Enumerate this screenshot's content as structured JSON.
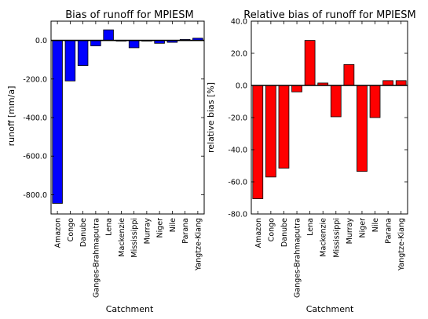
{
  "chart_data": [
    {
      "type": "bar",
      "title": "Bias of runoff for MPIESM",
      "xlabel": "Catchment",
      "ylabel": "runoff [mm/a]",
      "categories": [
        "Amazon",
        "Congo",
        "Danube",
        "Ganges-Brahmaputra",
        "Lena",
        "Mackenzie",
        "Mississippi",
        "Murray",
        "Niger",
        "Nile",
        "Parana",
        "Yangtze-Kiang"
      ],
      "values": [
        -845,
        -210,
        -130,
        -28,
        55,
        -2,
        -38,
        -3,
        -15,
        -10,
        5,
        12
      ],
      "ylim": [
        -900,
        100
      ],
      "yticks": [
        -800,
        -600,
        -400,
        -200,
        0
      ],
      "ytick_labels": [
        "-800.0",
        "-600.0",
        "-400.0",
        "-200.0",
        "0.0"
      ],
      "color": "#0000ff",
      "grid": false,
      "zero_line": true
    },
    {
      "type": "bar",
      "title": "Relative bias of runoff for MPIESM",
      "xlabel": "Catchment",
      "ylabel": "relative bias [%]",
      "categories": [
        "Amazon",
        "Congo",
        "Danube",
        "Ganges-Brahmaputra",
        "Lena",
        "Mackenzie",
        "Mississippi",
        "Murray",
        "Niger",
        "Nile",
        "Parana",
        "Yangtze-Kiang"
      ],
      "values": [
        -70.5,
        -57,
        -51.5,
        -4,
        28,
        1.5,
        -19.5,
        13,
        -53.5,
        -20,
        3,
        3
      ],
      "ylim": [
        -80,
        40
      ],
      "yticks": [
        -80,
        -60,
        -40,
        -20,
        0,
        20,
        40
      ],
      "ytick_labels": [
        "-80.0",
        "-60.0",
        "-40.0",
        "-20.0",
        "0.0",
        "20.0",
        "40.0"
      ],
      "color": "#ff0000",
      "grid": false,
      "zero_line": true
    }
  ]
}
